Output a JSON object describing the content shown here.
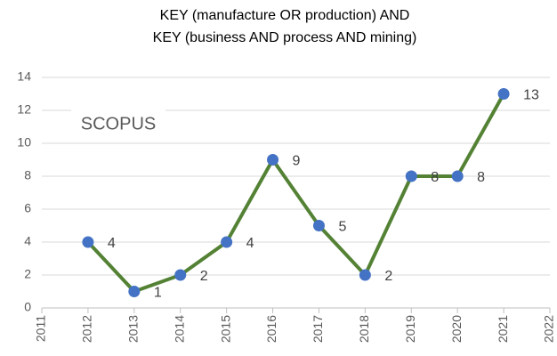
{
  "chart_data": {
    "type": "line",
    "title": [
      "KEY (manufacture OR production) AND",
      "KEY (business AND process AND mining)"
    ],
    "annotation": "SCOPUS",
    "x": [
      2012,
      2013,
      2014,
      2015,
      2016,
      2017,
      2018,
      2019,
      2020,
      2021
    ],
    "series": [
      {
        "name": "SCOPUS",
        "color": "#548235",
        "marker_color": "#4472c4",
        "values": [
          4,
          1,
          2,
          4,
          9,
          5,
          2,
          8,
          8,
          13
        ]
      }
    ],
    "xlim": [
      2011,
      2022
    ],
    "xticks": [
      2011,
      2012,
      2013,
      2014,
      2015,
      2016,
      2017,
      2018,
      2019,
      2020,
      2021,
      2022
    ],
    "ylim": [
      0,
      14
    ],
    "yticks": [
      0,
      2,
      4,
      6,
      8,
      10,
      12,
      14
    ],
    "grid": true
  }
}
